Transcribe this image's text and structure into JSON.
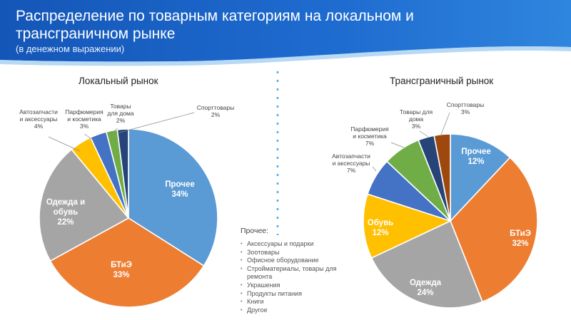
{
  "header": {
    "title": "Распределение по товарным категориям на локальном и трансграничном рынке",
    "subtitle": "(в денежном выражении)"
  },
  "colors": {
    "header_bg": "#1a63c4",
    "prochee_blue": "#5b9bd5",
    "btie_orange": "#ed7d31",
    "gray": "#a5a5a5",
    "yellow": "#ffc000",
    "dark_blue": "#4472c4",
    "green": "#70ad47",
    "navy": "#264478",
    "brown": "#9e480e",
    "divider": "#5aa9de"
  },
  "notes": {
    "title": "Прочее:",
    "items": [
      "Аксессуары и подарки",
      "Зоотовары",
      "Офисное оборудование",
      "Стройматериалы, товары для ремонта",
      "Украшения",
      "Продукты питания",
      "Книги",
      "Другое"
    ]
  },
  "chart_data": [
    {
      "type": "pie",
      "title": "Локальный рынок",
      "slices": [
        {
          "name": "Прочее",
          "value": 34,
          "label": "34%",
          "color": "#5b9bd5",
          "label_style": "inside"
        },
        {
          "name": "БТиЭ",
          "value": 33,
          "label": "33%",
          "color": "#ed7d31",
          "label_style": "inside"
        },
        {
          "name": "Одежда и обувь",
          "value": 22,
          "label": "22%",
          "color": "#a5a5a5",
          "label_style": "inside"
        },
        {
          "name": "Автозапчасти и аксессуары",
          "value": 4,
          "label": "4%",
          "color": "#ffc000",
          "label_style": "outside"
        },
        {
          "name": "Парфюмерия и косметика",
          "value": 3,
          "label": "3%",
          "color": "#4472c4",
          "label_style": "outside"
        },
        {
          "name": "Товары для дома",
          "value": 2,
          "label": "2%",
          "color": "#70ad47",
          "label_style": "outside"
        },
        {
          "name": "Спорттовары",
          "value": 2,
          "label": "2%",
          "color": "#264478",
          "label_style": "outside"
        }
      ]
    },
    {
      "type": "pie",
      "title": "Трансграничный рынок",
      "slices": [
        {
          "name": "Прочее",
          "value": 12,
          "label": "12%",
          "color": "#5b9bd5",
          "label_style": "inside"
        },
        {
          "name": "БТиЭ",
          "value": 32,
          "label": "32%",
          "color": "#ed7d31",
          "label_style": "inside"
        },
        {
          "name": "Одежда",
          "value": 24,
          "label": "24%",
          "color": "#a5a5a5",
          "label_style": "inside"
        },
        {
          "name": "Обувь",
          "value": 12,
          "label": "12%",
          "color": "#ffc000",
          "label_style": "inside"
        },
        {
          "name": "Автозапчасти и аксессуары",
          "value": 7,
          "label": "7%",
          "color": "#4472c4",
          "label_style": "outside"
        },
        {
          "name": "Парфюмерия и косметика",
          "value": 7,
          "label": "7%",
          "color": "#70ad47",
          "label_style": "outside"
        },
        {
          "name": "Товары для дома",
          "value": 3,
          "label": "3%",
          "color": "#264478",
          "label_style": "outside"
        },
        {
          "name": "Спорттовары",
          "value": 3,
          "label": "3%",
          "color": "#9e480e",
          "label_style": "outside"
        }
      ]
    }
  ]
}
